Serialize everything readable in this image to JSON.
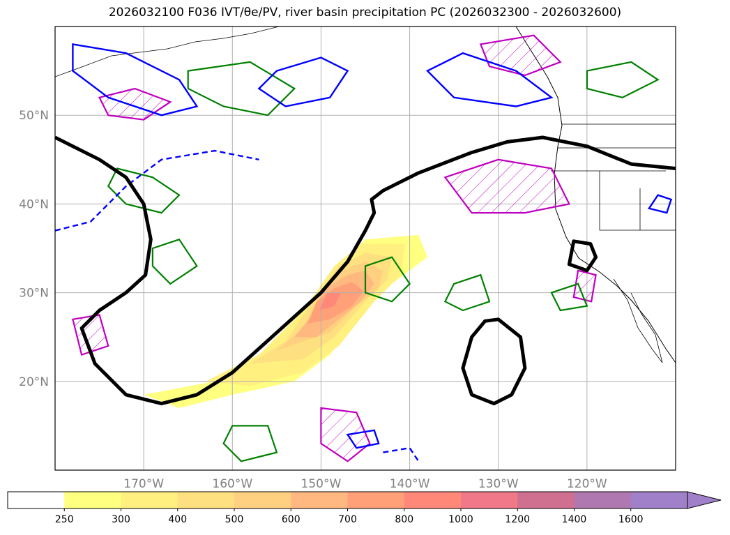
{
  "chart_data": {
    "type": "map",
    "title": "2026032100 F036 IVT/θe/PV, river basin precipitation PC (2026032300 - 2026032600)",
    "region": "North Pacific",
    "lon_range": [
      -180,
      -110
    ],
    "lat_range": [
      10,
      60
    ],
    "lat_ticks": [
      {
        "value": 20,
        "label": "20°N"
      },
      {
        "value": 30,
        "label": "30°N"
      },
      {
        "value": 40,
        "label": "40°N"
      },
      {
        "value": 50,
        "label": "50°N"
      }
    ],
    "lon_ticks": [
      {
        "value": -170,
        "label": "170°W"
      },
      {
        "value": -160,
        "label": "160°W"
      },
      {
        "value": -150,
        "label": "150°W"
      },
      {
        "value": -140,
        "label": "140°W"
      },
      {
        "value": -130,
        "label": "130°W"
      },
      {
        "value": -120,
        "label": "120°W"
      }
    ],
    "grid": true,
    "colorbar": {
      "levels": [
        "250",
        "300",
        "400",
        "500",
        "600",
        "700",
        "800",
        "1000",
        "1200",
        "1400",
        "1600"
      ],
      "colors": [
        "#ffffff",
        "#ffff80",
        "#fff080",
        "#ffe080",
        "#ffd080",
        "#ffb880",
        "#ffa078",
        "#ff8878",
        "#f07888",
        "#d07090",
        "#b078b0",
        "#a080c8"
      ],
      "extend": "max"
    },
    "ivt_plume": {
      "layers": [
        {
          "level": 250,
          "color": "#ffff80",
          "path_lonlat": [
            [
              -170,
              18.5
            ],
            [
              -162,
              20
            ],
            [
              -156,
              23
            ],
            [
              -151,
              28
            ],
            [
              -148,
              33
            ],
            [
              -145,
              36
            ],
            [
              -139,
              36.5
            ],
            [
              -138,
              34
            ],
            [
              -142,
              31
            ],
            [
              -145,
              28
            ],
            [
              -149,
              23
            ],
            [
              -153,
              20
            ],
            [
              -160,
              18.5
            ],
            [
              -166,
              17
            ]
          ]
        },
        {
          "level": 300,
          "color": "#fff080",
          "path_lonlat": [
            [
              -163,
              20
            ],
            [
              -157,
              23
            ],
            [
              -152,
              28
            ],
            [
              -148.5,
              33
            ],
            [
              -145.5,
              35.5
            ],
            [
              -140.5,
              35.5
            ],
            [
              -141,
              32
            ],
            [
              -144,
              29
            ],
            [
              -148,
              24
            ],
            [
              -152,
              21
            ],
            [
              -158,
              19.5
            ]
          ]
        },
        {
          "level": 400,
          "color": "#ffe080",
          "path_lonlat": [
            [
              -158,
              22
            ],
            [
              -154,
              24.5
            ],
            [
              -151,
              29
            ],
            [
              -148,
              33
            ],
            [
              -145,
              34.5
            ],
            [
              -142,
              34
            ],
            [
              -142.5,
              31.5
            ],
            [
              -145,
              29
            ],
            [
              -148.5,
              25
            ],
            [
              -152,
              22.5
            ]
          ]
        },
        {
          "level": 500,
          "color": "#ffd080",
          "path_lonlat": [
            [
              -155,
              23.5
            ],
            [
              -152,
              26
            ],
            [
              -150,
              30
            ],
            [
              -147.5,
              32.5
            ],
            [
              -145,
              33.5
            ],
            [
              -143,
              32.5
            ],
            [
              -143.5,
              30.5
            ],
            [
              -146,
              28.5
            ],
            [
              -149,
              25.5
            ]
          ]
        },
        {
          "level": 600,
          "color": "#ffb880",
          "path_lonlat": [
            [
              -153,
              25
            ],
            [
              -151,
              27.5
            ],
            [
              -149.5,
              30.5
            ],
            [
              -147,
              32
            ],
            [
              -145,
              32.5
            ],
            [
              -144,
              31
            ],
            [
              -145.5,
              29
            ],
            [
              -148,
              27
            ],
            [
              -150.5,
              25
            ]
          ]
        },
        {
          "level": 700,
          "color": "#ffa078",
          "path_lonlat": [
            [
              -151.5,
              26.5
            ],
            [
              -150.5,
              29
            ],
            [
              -148.5,
              30.5
            ],
            [
              -146.5,
              31.2
            ],
            [
              -145.2,
              30.2
            ],
            [
              -146.5,
              28.5
            ],
            [
              -149,
              27
            ]
          ]
        },
        {
          "level": 800,
          "color": "#ff8878",
          "path_lonlat": [
            [
              -150.2,
              28
            ],
            [
              -149.3,
              30
            ],
            [
              -147.8,
              30
            ],
            [
              -148.5,
              28.5
            ]
          ]
        }
      ]
    },
    "pv_contour": [
      {
        "name": "pv-west-trough",
        "path_lonlat": [
          [
            -180,
            47.5
          ],
          [
            -175,
            45
          ],
          [
            -172,
            43
          ],
          [
            -170,
            40
          ],
          [
            -169.2,
            36
          ],
          [
            -169.8,
            32
          ],
          [
            -172,
            30
          ],
          [
            -175,
            28
          ],
          [
            -177,
            26
          ],
          [
            -175.5,
            22
          ],
          [
            -172,
            18.5
          ],
          [
            -168,
            17.5
          ],
          [
            -164,
            18.5
          ],
          [
            -160,
            21
          ],
          [
            -155,
            25.5
          ],
          [
            -150,
            30
          ],
          [
            -147,
            33.5
          ],
          [
            -145,
            37
          ],
          [
            -144,
            39
          ],
          [
            -144.3,
            40.5
          ],
          [
            -143,
            41.5
          ],
          [
            -139,
            43.5
          ],
          [
            -133,
            45.8
          ],
          [
            -129,
            47
          ],
          [
            -125,
            47.5
          ],
          [
            -120,
            46.5
          ],
          [
            -115,
            44.5
          ],
          [
            -110,
            44
          ]
        ]
      },
      {
        "name": "pv-cutoff-low",
        "path_lonlat": [
          [
            -130,
            27
          ],
          [
            -127.5,
            25
          ],
          [
            -127,
            21.5
          ],
          [
            -128.5,
            18.5
          ],
          [
            -130.5,
            17.5
          ],
          [
            -133,
            18.5
          ],
          [
            -134,
            21.5
          ],
          [
            -133,
            25
          ],
          [
            -131.5,
            26.8
          ]
        ]
      },
      {
        "name": "pv-coastal-low",
        "path_lonlat": [
          [
            -121.5,
            35.8
          ],
          [
            -119.6,
            35.5
          ],
          [
            -119,
            34
          ],
          [
            -120,
            32.5
          ],
          [
            -122,
            33.2
          ],
          [
            -121.5,
            35.8
          ]
        ]
      }
    ],
    "theta_e": [
      {
        "name": "theta-e-west-1",
        "color": "#008000",
        "path_lonlat": [
          [
            -173,
            44
          ],
          [
            -169,
            43
          ],
          [
            -166,
            41
          ],
          [
            -168,
            39
          ],
          [
            -172,
            40
          ],
          [
            -174,
            42
          ],
          [
            -173,
            44
          ]
        ]
      },
      {
        "name": "theta-e-west-2",
        "color": "#008000",
        "path_lonlat": [
          [
            -169,
            35
          ],
          [
            -166,
            36
          ],
          [
            -164,
            33
          ],
          [
            -167,
            31
          ],
          [
            -169,
            33
          ]
        ]
      },
      {
        "name": "theta-e-north",
        "color": "#008000",
        "path_lonlat": [
          [
            -165,
            55
          ],
          [
            -158,
            56
          ],
          [
            -153,
            53
          ],
          [
            -156,
            50
          ],
          [
            -161,
            51
          ],
          [
            -165,
            53
          ]
        ]
      },
      {
        "name": "theta-e-center",
        "color": "#008000",
        "path_lonlat": [
          [
            -145,
            33
          ],
          [
            -142,
            34
          ],
          [
            -140,
            31
          ],
          [
            -142,
            29
          ],
          [
            -145,
            30
          ]
        ]
      },
      {
        "name": "theta-e-east",
        "color": "#008000",
        "path_lonlat": [
          [
            -135,
            31
          ],
          [
            -132,
            32
          ],
          [
            -131,
            29
          ],
          [
            -134,
            28
          ],
          [
            -136,
            29
          ]
        ]
      },
      {
        "name": "theta-e-ne",
        "color": "#008000",
        "path_lonlat": [
          [
            -120,
            55
          ],
          [
            -115,
            56
          ],
          [
            -112,
            54
          ],
          [
            -116,
            52
          ],
          [
            -120,
            53
          ]
        ]
      },
      {
        "name": "theta-e-south",
        "color": "#008000",
        "path_lonlat": [
          [
            -160,
            15
          ],
          [
            -156,
            15
          ],
          [
            -155,
            12
          ],
          [
            -159,
            11
          ],
          [
            -161,
            13
          ]
        ]
      },
      {
        "name": "theta-e-cal",
        "color": "#008000",
        "path_lonlat": [
          [
            -124,
            30
          ],
          [
            -121,
            31
          ],
          [
            -120,
            28.5
          ],
          [
            -123,
            28
          ]
        ]
      }
    ],
    "ivt_lines": [
      {
        "name": "ivt-line-nw",
        "color": "#0000ff",
        "path_lonlat": [
          [
            -178,
            58
          ],
          [
            -172,
            57
          ],
          [
            -166,
            54
          ],
          [
            -164,
            51
          ],
          [
            -168,
            50
          ],
          [
            -174,
            52
          ],
          [
            -178,
            55
          ]
        ]
      },
      {
        "name": "ivt-line-north",
        "color": "#0000ff",
        "path_lonlat": [
          [
            -155,
            55
          ],
          [
            -150,
            56.5
          ],
          [
            -147,
            55
          ],
          [
            -149,
            52
          ],
          [
            -154,
            51
          ],
          [
            -157,
            53
          ]
        ]
      },
      {
        "name": "ivt-line-ne",
        "color": "#0000ff",
        "path_lonlat": [
          [
            -138,
            55
          ],
          [
            -134,
            57
          ],
          [
            -128,
            55
          ],
          [
            -124,
            52
          ],
          [
            -128,
            51
          ],
          [
            -135,
            52
          ]
        ]
      },
      {
        "name": "ivt-line-east",
        "color": "#0000ff",
        "path_lonlat": [
          [
            -112,
            41
          ],
          [
            -110.5,
            40.5
          ],
          [
            -111,
            39
          ],
          [
            -113,
            39.5
          ]
        ]
      },
      {
        "name": "ivt-line-south",
        "color": "#0000ff",
        "path_lonlat": [
          [
            -147,
            14
          ],
          [
            -144,
            14.5
          ],
          [
            -143.5,
            13
          ],
          [
            -146,
            12.5
          ]
        ]
      }
    ],
    "ivt_dashed": [
      {
        "name": "ivt-dashed-west",
        "color": "#0000ff",
        "path_lonlat": [
          [
            -180,
            37
          ],
          [
            -176,
            38
          ],
          [
            -172,
            42
          ],
          [
            -168,
            45
          ],
          [
            -162,
            46
          ],
          [
            -157,
            45
          ]
        ]
      },
      {
        "name": "ivt-dashed-south",
        "color": "#0000ff",
        "path_lonlat": [
          [
            -143,
            12
          ],
          [
            -140,
            12.5
          ],
          [
            -139,
            11
          ]
        ]
      }
    ],
    "precip_hatched": [
      {
        "name": "precip-hatch-1",
        "color": "#c000c0",
        "path_lonlat": [
          [
            -175,
            52
          ],
          [
            -171,
            53
          ],
          [
            -167,
            51.5
          ],
          [
            -170,
            49.5
          ],
          [
            -174,
            50
          ]
        ]
      },
      {
        "name": "precip-hatch-2",
        "color": "#c000c0",
        "path_lonlat": [
          [
            -136,
            43
          ],
          [
            -130,
            45
          ],
          [
            -124,
            44
          ],
          [
            -122,
            40
          ],
          [
            -127,
            39
          ],
          [
            -133,
            39
          ]
        ]
      },
      {
        "name": "precip-hatch-3",
        "color": "#c000c0",
        "path_lonlat": [
          [
            -150,
            17
          ],
          [
            -146,
            16.5
          ],
          [
            -144.5,
            13
          ],
          [
            -147,
            11
          ],
          [
            -150,
            13
          ]
        ]
      },
      {
        "name": "precip-hatch-4",
        "color": "#c000c0",
        "path_lonlat": [
          [
            -178,
            27
          ],
          [
            -175,
            27.5
          ],
          [
            -174,
            24
          ],
          [
            -177,
            23
          ]
        ]
      },
      {
        "name": "precip-hatch-5",
        "color": "#c000c0",
        "path_lonlat": [
          [
            -132,
            58
          ],
          [
            -126,
            59
          ],
          [
            -123,
            56
          ],
          [
            -127,
            54.5
          ],
          [
            -131,
            55.5
          ]
        ]
      },
      {
        "name": "precip-hatch-6",
        "color": "#c000c0",
        "path_lonlat": [
          [
            -121,
            32.5
          ],
          [
            -119,
            32
          ],
          [
            -119.5,
            29
          ],
          [
            -121.5,
            29.5
          ]
        ]
      }
    ]
  }
}
